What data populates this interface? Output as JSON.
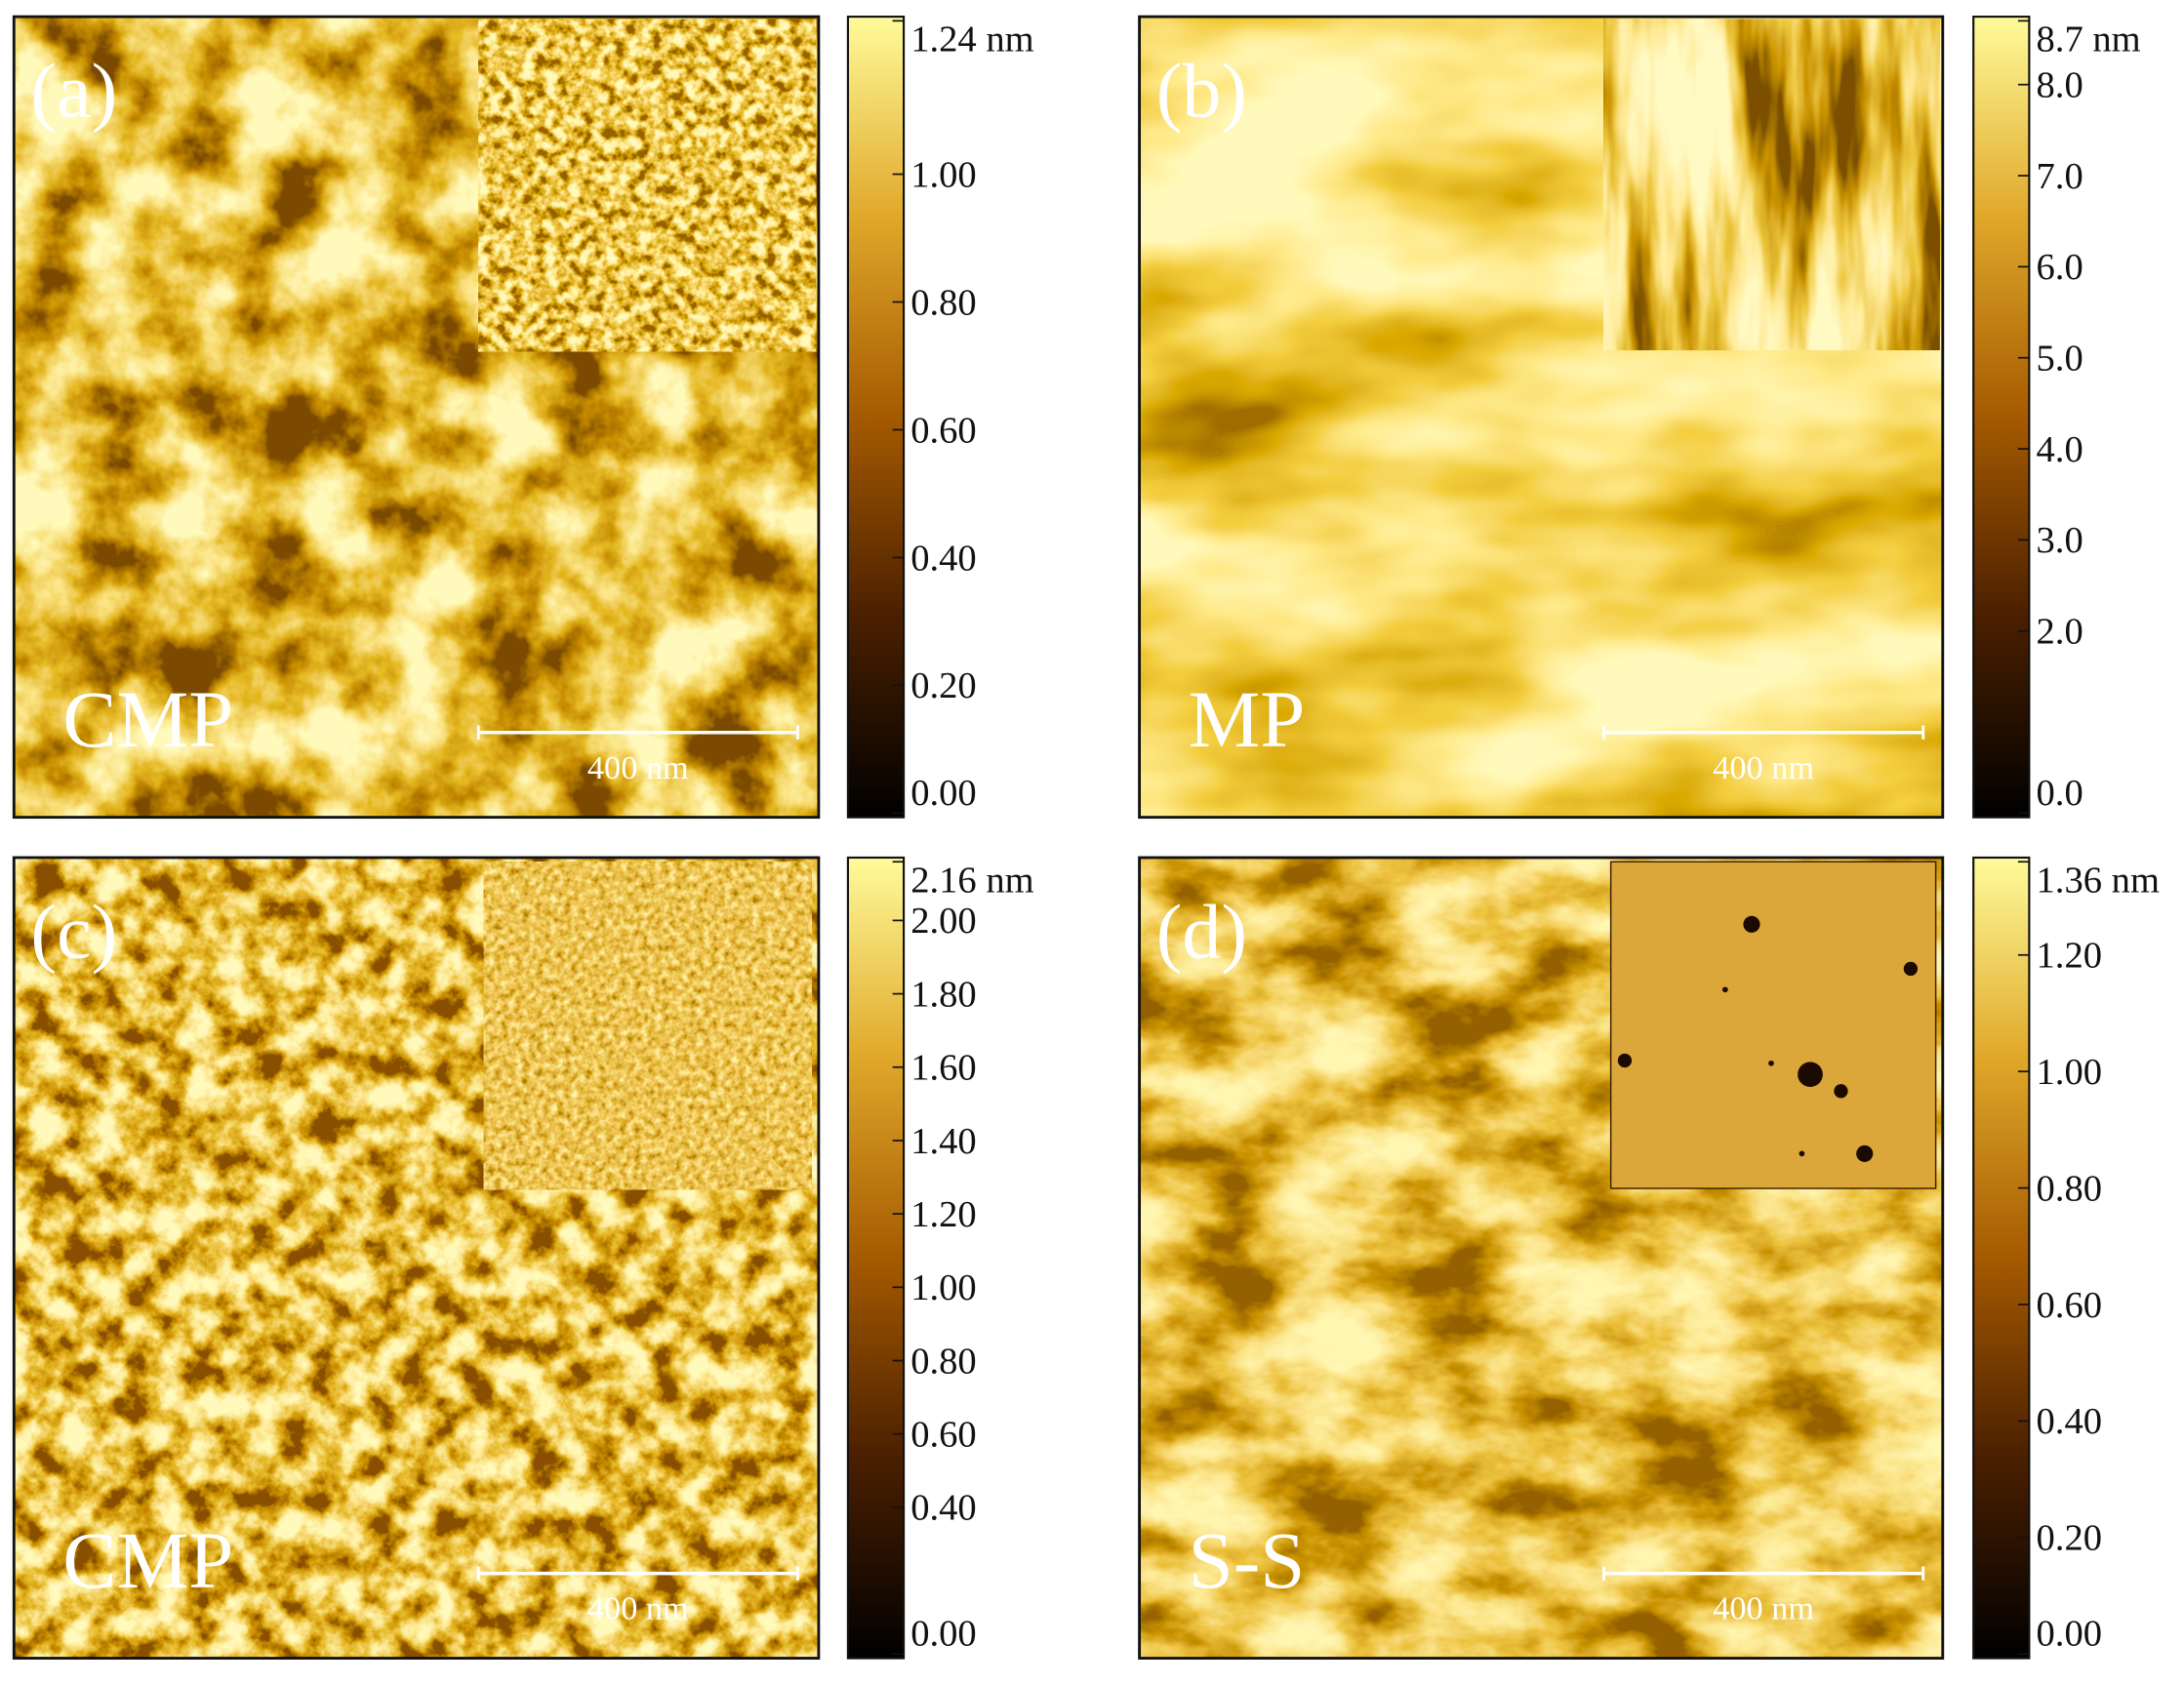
{
  "panels": [
    {
      "label": "(a)",
      "sample": "CMP",
      "scale_bar": "400 nm",
      "colorbar_ticks": [
        "1.24 nm",
        "1.00",
        "0.80",
        "0.60",
        "0.40",
        "0.20",
        "0.00"
      ]
    },
    {
      "label": "(b)",
      "sample": "MP",
      "scale_bar": "400 nm",
      "colorbar_ticks": [
        "8.7 nm",
        "8.0",
        "7.0",
        "6.0",
        "5.0",
        "4.0",
        "3.0",
        "2.0",
        "0.0"
      ]
    },
    {
      "label": "(c)",
      "sample": "CMP",
      "scale_bar": "400 nm",
      "colorbar_ticks": [
        "2.16 nm",
        "2.00",
        "1.80",
        "1.60",
        "1.40",
        "1.20",
        "1.00",
        "0.80",
        "0.60",
        "0.40",
        "0.00"
      ]
    },
    {
      "label": "(d)",
      "sample": "S-S",
      "scale_bar": "400 nm",
      "colorbar_ticks": [
        "1.36 nm",
        "1.20",
        "1.00",
        "0.80",
        "0.60",
        "0.40",
        "0.20",
        "0.00"
      ]
    }
  ]
}
